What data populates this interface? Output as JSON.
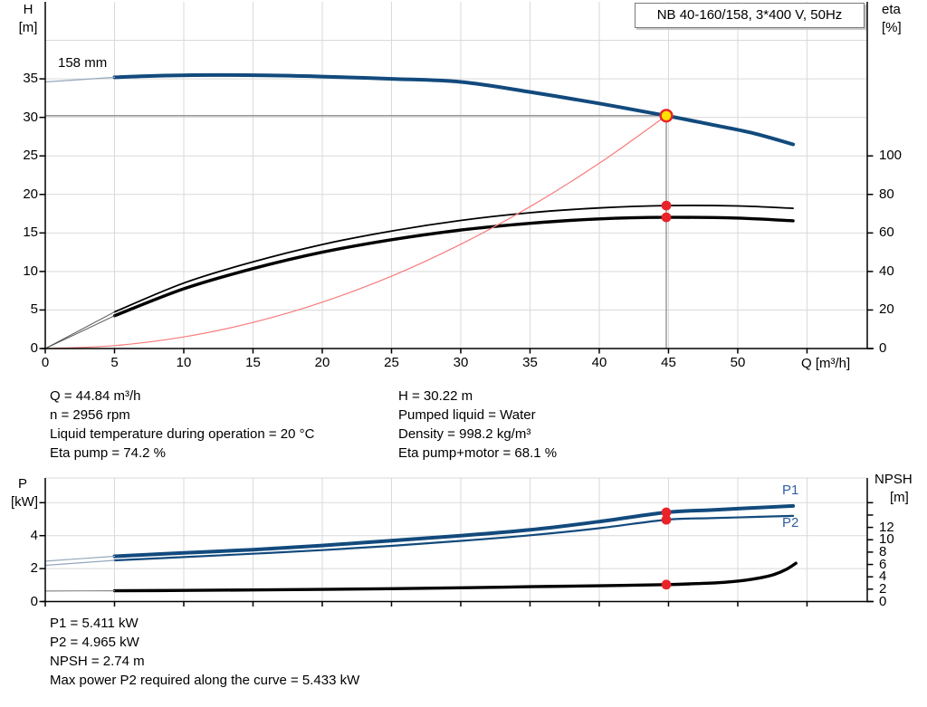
{
  "colors": {
    "blue": "#124a7d",
    "blue_label": "#2e5fa3",
    "red": "#e8232a",
    "red_light": "#f87b7b",
    "yellow": "#ffe100",
    "grid": "#d9d9d9",
    "axis": "#000000",
    "crosshair": "#8a8a8a",
    "leadin_blue": "#93a7bd",
    "leadin_dark": "#555555",
    "leadin_gray": "#8a8a8a"
  },
  "top_info": {
    "left": [
      "Q = 44.84 m³/h",
      "n = 2956 rpm",
      "Liquid temperature during operation = 20 °C",
      "Eta pump = 74.2 %"
    ],
    "right": [
      "H = 30.22 m",
      "Pumped liquid = Water",
      "Density = 998.2 kg/m³",
      "Eta pump+motor = 68.1 %"
    ]
  },
  "bottom_info": [
    "P1 = 5.411 kW",
    "P2 = 4.965 kW",
    "NPSH = 2.74 m",
    "Max power P2 required along the curve = 5.433 kW"
  ],
  "chart_data": [
    {
      "id": "head",
      "type": "line",
      "title": "NB 40-160/158, 3*400 V, 50Hz",
      "impeller_label": "158 mm",
      "x_axis": {
        "label": "Q [m³/h]",
        "lim": [
          0,
          59.35
        ],
        "tick_labels": [
          0,
          5,
          10,
          15,
          20,
          25,
          30,
          35,
          40,
          45,
          50
        ],
        "grid": [
          5,
          10,
          15,
          20,
          25,
          30,
          35,
          40,
          45,
          50,
          55
        ]
      },
      "left_axis": {
        "title": "H",
        "unit": "[m]",
        "lim": [
          0,
          45
        ],
        "ticks": [
          0,
          5,
          10,
          15,
          20,
          25,
          30,
          35
        ],
        "grid": [
          5,
          10,
          15,
          20,
          25,
          30,
          35,
          40
        ]
      },
      "right_axis": {
        "title": "eta",
        "unit": "[%]",
        "lim": [
          0,
          180
        ],
        "ticks": [
          0,
          20,
          40,
          60,
          80,
          100
        ],
        "unlabeled_ticks": []
      },
      "duty_point": {
        "q": 44.84,
        "h": 30.22
      },
      "series": [
        {
          "name": "head-curve",
          "axis": "left",
          "style": "blue-thick",
          "points": [
            [
              5,
              35.2
            ],
            [
              8,
              35.4
            ],
            [
              12,
              35.5
            ],
            [
              16,
              35.45
            ],
            [
              20,
              35.3
            ],
            [
              25,
              35.0
            ],
            [
              30,
              34.6
            ],
            [
              35,
              33.3
            ],
            [
              40,
              31.8
            ],
            [
              44.84,
              30.22
            ],
            [
              48,
              29.1
            ],
            [
              51,
              28.0
            ],
            [
              54,
              26.5
            ]
          ]
        },
        {
          "name": "head-curve-leadin",
          "axis": "left",
          "style": "leadin-blue",
          "points": [
            [
              0,
              34.6
            ],
            [
              5,
              35.2
            ]
          ]
        },
        {
          "name": "eta-pump-curve",
          "axis": "right",
          "style": "black-thin",
          "points": [
            [
              5,
              19
            ],
            [
              10,
              34
            ],
            [
              15,
              45
            ],
            [
              20,
              54
            ],
            [
              25,
              61
            ],
            [
              30,
              66.5
            ],
            [
              35,
              70.5
            ],
            [
              40,
              73
            ],
            [
              44.84,
              74.2
            ],
            [
              50,
              74
            ],
            [
              54,
              72.8
            ]
          ]
        },
        {
          "name": "eta-pump-leadin",
          "axis": "right",
          "style": "leadin-dark",
          "points": [
            [
              0,
              0
            ],
            [
              5,
              19
            ]
          ]
        },
        {
          "name": "eta-pump-motor-curve",
          "axis": "right",
          "style": "black-thick",
          "points": [
            [
              5,
              17
            ],
            [
              10,
              31
            ],
            [
              15,
              41.5
            ],
            [
              20,
              50
            ],
            [
              25,
              56.5
            ],
            [
              30,
              61.5
            ],
            [
              35,
              65
            ],
            [
              40,
              67.3
            ],
            [
              44.84,
              68.1
            ],
            [
              50,
              67.7
            ],
            [
              54,
              66.3
            ]
          ]
        },
        {
          "name": "eta-pump-motor-leadin",
          "axis": "right",
          "style": "leadin-dark",
          "points": [
            [
              0,
              0
            ],
            [
              5,
              17
            ]
          ]
        },
        {
          "name": "affinity-curve",
          "axis": "left",
          "style": "red-thin",
          "points": [
            [
              0,
              0
            ],
            [
              5,
              0.38
            ],
            [
              10,
              1.5
            ],
            [
              15,
              3.38
            ],
            [
              20,
              6.01
            ],
            [
              25,
              9.39
            ],
            [
              30,
              13.53
            ],
            [
              35,
              18.41
            ],
            [
              40,
              24.05
            ],
            [
              44.84,
              30.22
            ]
          ]
        }
      ],
      "markers": [
        {
          "axis": "right",
          "q": 44.84,
          "v": 74.2
        },
        {
          "axis": "right",
          "q": 44.84,
          "v": 68.1
        }
      ]
    },
    {
      "id": "power",
      "type": "line",
      "x_axis": {
        "label": "",
        "lim": [
          0,
          59.35
        ],
        "tick_labels": [],
        "grid": [
          5,
          10,
          15,
          20,
          25,
          30,
          35,
          40,
          45,
          50,
          55
        ]
      },
      "left_axis": {
        "title": "P",
        "unit": "[kW]",
        "lim": [
          0,
          7.5
        ],
        "ticks": [
          0,
          2,
          4
        ],
        "unlabeled_ticks": [
          6
        ],
        "grid": [
          2,
          4,
          6
        ]
      },
      "right_axis": {
        "title": "NPSH",
        "unit": "[m]",
        "lim": [
          0,
          20
        ],
        "ticks": [
          0,
          2,
          4,
          6,
          8,
          10,
          12
        ],
        "unlabeled_ticks": [
          14,
          16
        ]
      },
      "curve_labels": [
        {
          "text": "P1"
        },
        {
          "text": "P2"
        }
      ],
      "series": [
        {
          "name": "p1-curve",
          "axis": "left",
          "style": "blue-thick",
          "points": [
            [
              5,
              2.75
            ],
            [
              10,
              2.95
            ],
            [
              15,
              3.15
            ],
            [
              20,
              3.4
            ],
            [
              25,
              3.7
            ],
            [
              30,
              4.0
            ],
            [
              35,
              4.35
            ],
            [
              40,
              4.85
            ],
            [
              44.84,
              5.411
            ],
            [
              48,
              5.55
            ],
            [
              51,
              5.68
            ],
            [
              54,
              5.8
            ]
          ]
        },
        {
          "name": "p1-leadin",
          "axis": "left",
          "style": "leadin-blue",
          "points": [
            [
              0,
              2.45
            ],
            [
              5,
              2.75
            ]
          ]
        },
        {
          "name": "p2-curve",
          "axis": "left",
          "style": "blue-medium",
          "points": [
            [
              5,
              2.5
            ],
            [
              10,
              2.7
            ],
            [
              15,
              2.9
            ],
            [
              20,
              3.12
            ],
            [
              25,
              3.38
            ],
            [
              30,
              3.68
            ],
            [
              35,
              4.02
            ],
            [
              40,
              4.45
            ],
            [
              44.84,
              4.965
            ],
            [
              48,
              5.06
            ],
            [
              51,
              5.13
            ],
            [
              54,
              5.2
            ]
          ]
        },
        {
          "name": "p2-leadin",
          "axis": "left",
          "style": "leadin-blue",
          "points": [
            [
              0,
              2.2
            ],
            [
              5,
              2.5
            ]
          ]
        },
        {
          "name": "npsh-curve",
          "axis": "right",
          "style": "black-thick",
          "points": [
            [
              5,
              1.75
            ],
            [
              10,
              1.8
            ],
            [
              15,
              1.88
            ],
            [
              20,
              1.97
            ],
            [
              25,
              2.08
            ],
            [
              30,
              2.22
            ],
            [
              35,
              2.4
            ],
            [
              40,
              2.55
            ],
            [
              44.84,
              2.74
            ],
            [
              47,
              2.9
            ],
            [
              49,
              3.1
            ],
            [
              51,
              3.6
            ],
            [
              52.5,
              4.3
            ],
            [
              53.5,
              5.2
            ],
            [
              54.2,
              6.2
            ]
          ]
        },
        {
          "name": "npsh-leadin",
          "axis": "right",
          "style": "leadin-gray",
          "points": [
            [
              0,
              1.7
            ],
            [
              5,
              1.75
            ]
          ]
        }
      ],
      "markers": [
        {
          "axis": "left",
          "q": 44.84,
          "v": 5.411
        },
        {
          "axis": "left",
          "q": 44.84,
          "v": 4.965
        },
        {
          "axis": "right",
          "q": 44.84,
          "v": 2.74
        }
      ]
    }
  ]
}
